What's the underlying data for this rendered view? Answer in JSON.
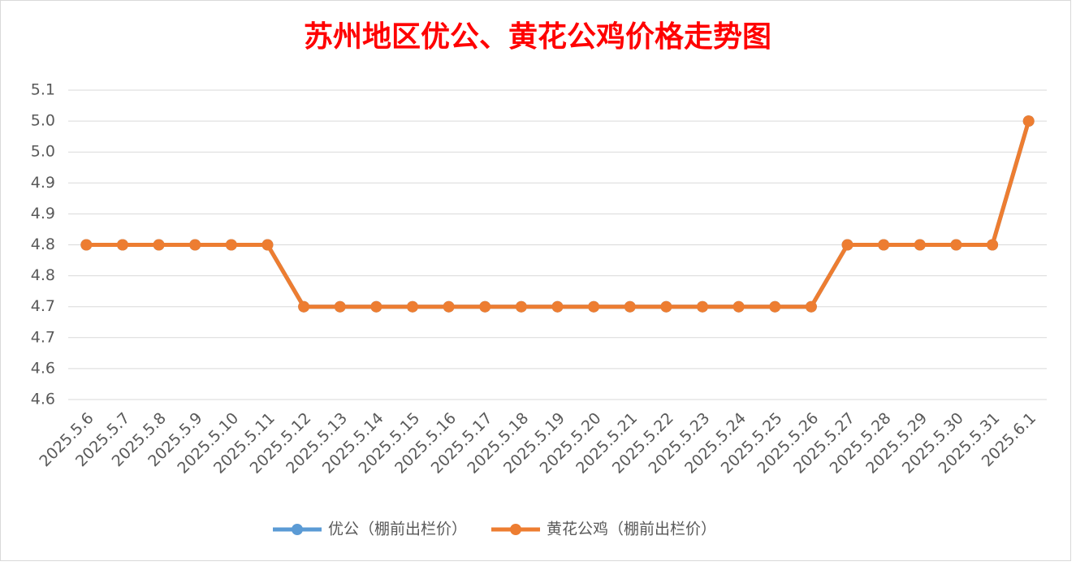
{
  "chart_data": {
    "type": "line",
    "title": "苏州地区优公、黄花公鸡价格走势图",
    "categories": [
      "2025.5.6",
      "2025.5.7",
      "2025.5.8",
      "2025.5.9",
      "2025.5.10",
      "2025.5.11",
      "2025.5.12",
      "2025.5.13",
      "2025.5.14",
      "2025.5.15",
      "2025.5.16",
      "2025.5.17",
      "2025.5.18",
      "2025.5.19",
      "2025.5.20",
      "2025.5.21",
      "2025.5.22",
      "2025.5.23",
      "2025.5.24",
      "2025.5.25",
      "2025.5.26",
      "2025.5.27",
      "2025.5.28",
      "2025.5.29",
      "2025.5.30",
      "2025.5.31",
      "2025.6.1"
    ],
    "series": [
      {
        "name": "优公（棚前出栏价）",
        "color": "#5b9bd5",
        "values": [
          4.8,
          4.8,
          4.8,
          4.8,
          4.8,
          4.8,
          4.7,
          4.7,
          4.7,
          4.7,
          4.7,
          4.7,
          4.7,
          4.7,
          4.7,
          4.7,
          4.7,
          4.7,
          4.7,
          4.7,
          4.7,
          4.8,
          4.8,
          4.8,
          4.8,
          4.8,
          5.0
        ]
      },
      {
        "name": "黄花公鸡（棚前出栏价）",
        "color": "#ed7d31",
        "values": [
          4.8,
          4.8,
          4.8,
          4.8,
          4.8,
          4.8,
          4.7,
          4.7,
          4.7,
          4.7,
          4.7,
          4.7,
          4.7,
          4.7,
          4.7,
          4.7,
          4.7,
          4.7,
          4.7,
          4.7,
          4.7,
          4.8,
          4.8,
          4.8,
          4.8,
          4.8,
          5.0
        ]
      }
    ],
    "ylim": [
      4.55,
      5.05
    ],
    "yticks": [
      {
        "value": 4.55,
        "label": "4.6"
      },
      4.6,
      {
        "value": 4.65,
        "label": "4.7"
      },
      4.7,
      {
        "value": 4.75,
        "label": "4.8"
      },
      4.8,
      {
        "value": 4.85,
        "label": "4.9"
      },
      4.9,
      {
        "value": 4.95,
        "label": "5.0"
      },
      {
        "value": 5.0,
        "label": "5.0"
      },
      {
        "value": 5.05,
        "label": "5.1"
      }
    ],
    "grid": true,
    "legend": "bottom"
  }
}
